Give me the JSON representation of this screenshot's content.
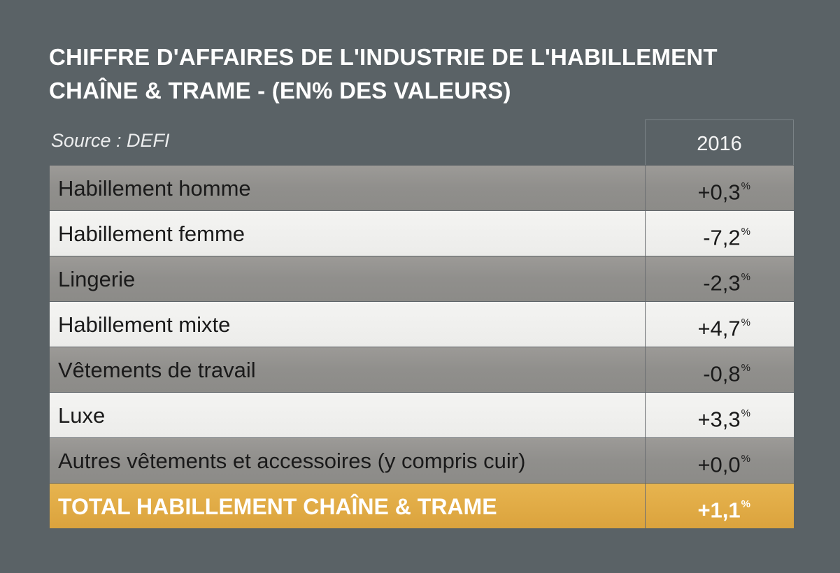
{
  "title": {
    "line1": "CHIFFRE D'AFFAIRES DE L'INDUSTRIE DE L'HABILLEMENT",
    "line2": "CHAÎNE & TRAME - (EN% DES VALEURS)"
  },
  "source": "Source : DEFI",
  "colors": {
    "background": "#5a6266",
    "row_dark": "#908f8c",
    "row_light": "#ececea",
    "row_total": "#e0aa45"
  },
  "chart_data": {
    "type": "table",
    "title": "CHIFFRE D'AFFAIRES DE L'INDUSTRIE DE L'HABILLEMENT CHAÎNE & TRAME - (EN% DES VALEURS)",
    "columns": [
      "",
      "2016"
    ],
    "unit_suffix": "%",
    "rows": [
      {
        "label": "Habillement homme",
        "value": "+0,3",
        "numeric": 0.3,
        "style": "dark"
      },
      {
        "label": "Habillement femme",
        "value": "-7,2",
        "numeric": -7.2,
        "style": "light"
      },
      {
        "label": "Lingerie",
        "value": "-2,3",
        "numeric": -2.3,
        "style": "dark"
      },
      {
        "label": "Habillement mixte",
        "value": "+4,7",
        "numeric": 4.7,
        "style": "light"
      },
      {
        "label": "Vêtements de travail",
        "value": "-0,8",
        "numeric": -0.8,
        "style": "dark"
      },
      {
        "label": "Luxe",
        "value": "+3,3",
        "numeric": 3.3,
        "style": "light"
      },
      {
        "label": "Autres vêtements et accessoires (y compris cuir)",
        "value": "+0,0",
        "numeric": 0.0,
        "style": "dark"
      },
      {
        "label": "TOTAL HABILLEMENT CHAÎNE & TRAME",
        "value": "+1,1",
        "numeric": 1.1,
        "style": "total"
      }
    ]
  }
}
